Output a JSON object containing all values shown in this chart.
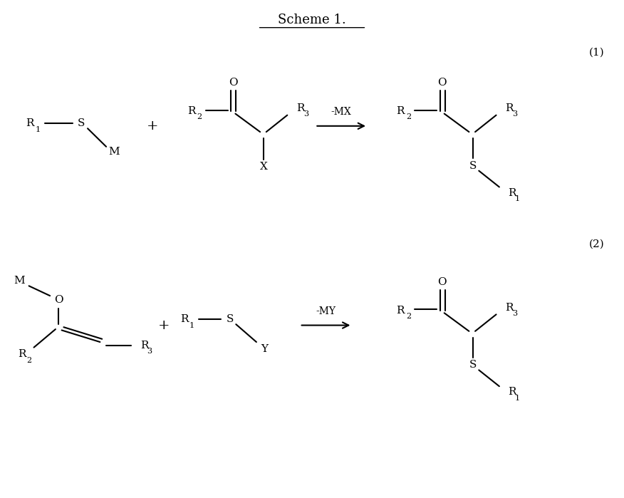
{
  "title": "Scheme 1.",
  "background_color": "#ffffff",
  "text_color": "#000000",
  "fig_width": 8.76,
  "fig_height": 6.99,
  "dpi": 100,
  "reaction1_label": "(1)",
  "reaction2_label": "(2)",
  "arrow1_label": "-MX",
  "arrow2_label": "-MY"
}
